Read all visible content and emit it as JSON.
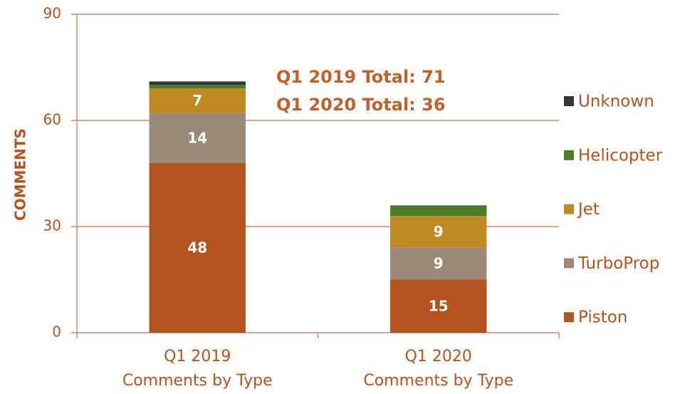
{
  "chart_data": {
    "type": "stacked_bar",
    "y_label": "COMMENTS",
    "annotations": [
      "Q1 2019 Total: 71",
      "Q1 2020 Total: 36"
    ],
    "categories": [
      "Q1 2019\nComments by Type",
      "Q1 2020\nComments by Type"
    ],
    "series": [
      {
        "name": "Piston",
        "color": "#b3531f",
        "values": [
          48,
          15
        ],
        "data_labels": true
      },
      {
        "name": "TurboProp",
        "color": "#998b78",
        "values": [
          14,
          9
        ],
        "data_labels": true
      },
      {
        "name": "Jet",
        "color": "#bf8a22",
        "values": [
          7,
          9
        ],
        "data_labels": true
      },
      {
        "name": "Helicopter",
        "color": "#4b7d2b",
        "values": [
          1,
          3
        ],
        "data_labels": false
      },
      {
        "name": "Unknown",
        "color": "#30363c",
        "values": [
          1,
          0
        ],
        "data_labels": false
      }
    ],
    "ylim": [
      0,
      90
    ],
    "yticks": [
      0,
      30,
      60,
      90
    ],
    "grid": true,
    "legend": "right"
  }
}
